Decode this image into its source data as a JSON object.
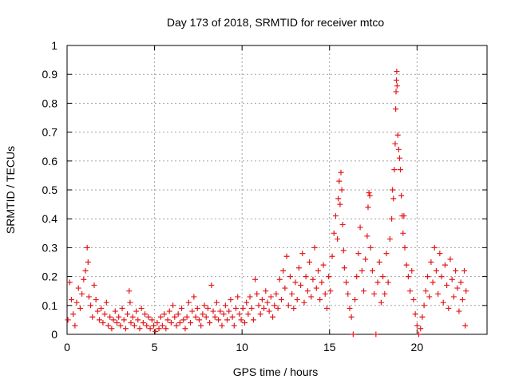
{
  "chart_data": {
    "type": "scatter",
    "title": "Day 173 of 2018, SRMTID for receiver mtco",
    "xlabel": "GPS time / hours",
    "ylabel": "SRMTID / TECUs",
    "xlim": [
      0,
      24
    ],
    "ylim": [
      0,
      1
    ],
    "x_ticks": [
      0,
      5,
      10,
      15,
      20
    ],
    "x_tick_labels": [
      "0",
      "5",
      "10",
      "15",
      "20"
    ],
    "y_ticks": [
      0,
      0.1,
      0.2,
      0.3,
      0.4,
      0.5,
      0.6,
      0.7,
      0.8,
      0.9,
      1
    ],
    "y_tick_labels": [
      "0",
      "0.1",
      "0.2",
      "0.3",
      "0.4",
      "0.5",
      "0.6",
      "0.7",
      "0.8",
      "0.9",
      "1"
    ],
    "grid": true,
    "marker": "plus",
    "series": [
      {
        "name": "SRMTID",
        "color": "#e31a1c",
        "points": [
          [
            0.05,
            0.05
          ],
          [
            0.15,
            0.18
          ],
          [
            0.25,
            0.12
          ],
          [
            0.35,
            0.07
          ],
          [
            0.45,
            0.03
          ],
          [
            0.55,
            0.11
          ],
          [
            0.65,
            0.16
          ],
          [
            0.75,
            0.09
          ],
          [
            0.85,
            0.14
          ],
          [
            0.95,
            0.19
          ],
          [
            1.05,
            0.22
          ],
          [
            1.15,
            0.3
          ],
          [
            1.2,
            0.25
          ],
          [
            1.25,
            0.13
          ],
          [
            1.35,
            0.1
          ],
          [
            1.45,
            0.06
          ],
          [
            1.55,
            0.17
          ],
          [
            1.65,
            0.12
          ],
          [
            1.75,
            0.08
          ],
          [
            1.85,
            0.05
          ],
          [
            1.95,
            0.09
          ],
          [
            2.05,
            0.04
          ],
          [
            2.15,
            0.07
          ],
          [
            2.25,
            0.11
          ],
          [
            2.35,
            0.03
          ],
          [
            2.45,
            0.06
          ],
          [
            2.55,
            0.02
          ],
          [
            2.65,
            0.05
          ],
          [
            2.75,
            0.08
          ],
          [
            2.85,
            0.04
          ],
          [
            2.95,
            0.06
          ],
          [
            3.05,
            0.03
          ],
          [
            3.15,
            0.09
          ],
          [
            3.25,
            0.05
          ],
          [
            3.35,
            0.02
          ],
          [
            3.45,
            0.07
          ],
          [
            3.55,
            0.15
          ],
          [
            3.6,
            0.11
          ],
          [
            3.65,
            0.04
          ],
          [
            3.75,
            0.06
          ],
          [
            3.85,
            0.03
          ],
          [
            3.95,
            0.08
          ],
          [
            4.05,
            0.05
          ],
          [
            4.15,
            0.02
          ],
          [
            4.25,
            0.09
          ],
          [
            4.35,
            0.04
          ],
          [
            4.45,
            0.07
          ],
          [
            4.55,
            0.03
          ],
          [
            4.65,
            0.06
          ],
          [
            4.75,
            0.02
          ],
          [
            4.85,
            0.05
          ],
          [
            4.95,
            0.03
          ],
          [
            5.05,
            0.01
          ],
          [
            5.15,
            0.04
          ],
          [
            5.25,
            0.02
          ],
          [
            5.35,
            0.06
          ],
          [
            5.45,
            0.03
          ],
          [
            5.55,
            0.07
          ],
          [
            5.65,
            0.02
          ],
          [
            5.75,
            0.05
          ],
          [
            5.85,
            0.08
          ],
          [
            5.95,
            0.04
          ],
          [
            6.05,
            0.1
          ],
          [
            6.15,
            0.06
          ],
          [
            6.25,
            0.03
          ],
          [
            6.35,
            0.07
          ],
          [
            6.45,
            0.04
          ],
          [
            6.55,
            0.09
          ],
          [
            6.65,
            0.05
          ],
          [
            6.75,
            0.02
          ],
          [
            6.85,
            0.06
          ],
          [
            6.95,
            0.11
          ],
          [
            7.05,
            0.04
          ],
          [
            7.15,
            0.08
          ],
          [
            7.25,
            0.13
          ],
          [
            7.35,
            0.06
          ],
          [
            7.45,
            0.09
          ],
          [
            7.55,
            0.05
          ],
          [
            7.65,
            0.03
          ],
          [
            7.75,
            0.07
          ],
          [
            7.85,
            0.1
          ],
          [
            7.95,
            0.06
          ],
          [
            8.05,
            0.09
          ],
          [
            8.15,
            0.04
          ],
          [
            8.25,
            0.17
          ],
          [
            8.35,
            0.08
          ],
          [
            8.45,
            0.06
          ],
          [
            8.55,
            0.11
          ],
          [
            8.65,
            0.05
          ],
          [
            8.75,
            0.08
          ],
          [
            8.85,
            0.03
          ],
          [
            8.95,
            0.07
          ],
          [
            9.05,
            0.1
          ],
          [
            9.15,
            0.05
          ],
          [
            9.25,
            0.08
          ],
          [
            9.35,
            0.12
          ],
          [
            9.45,
            0.06
          ],
          [
            9.55,
            0.03
          ],
          [
            9.65,
            0.09
          ],
          [
            9.75,
            0.13
          ],
          [
            9.85,
            0.07
          ],
          [
            9.95,
            0.05
          ],
          [
            10.05,
            0.09
          ],
          [
            10.15,
            0.04
          ],
          [
            10.25,
            0.11
          ],
          [
            10.35,
            0.07
          ],
          [
            10.45,
            0.13
          ],
          [
            10.55,
            0.09
          ],
          [
            10.65,
            0.05
          ],
          [
            10.75,
            0.19
          ],
          [
            10.85,
            0.14
          ],
          [
            10.95,
            0.1
          ],
          [
            11.05,
            0.07
          ],
          [
            11.15,
            0.12
          ],
          [
            11.25,
            0.09
          ],
          [
            11.35,
            0.15
          ],
          [
            11.45,
            0.11
          ],
          [
            11.55,
            0.08
          ],
          [
            11.65,
            0.13
          ],
          [
            11.75,
            0.06
          ],
          [
            11.85,
            0.1
          ],
          [
            11.95,
            0.14
          ],
          [
            12.05,
            0.09
          ],
          [
            12.15,
            0.19
          ],
          [
            12.25,
            0.12
          ],
          [
            12.35,
            0.22
          ],
          [
            12.45,
            0.16
          ],
          [
            12.55,
            0.27
          ],
          [
            12.65,
            0.1
          ],
          [
            12.75,
            0.2
          ],
          [
            12.85,
            0.14
          ],
          [
            12.95,
            0.09
          ],
          [
            13.05,
            0.18
          ],
          [
            13.15,
            0.12
          ],
          [
            13.25,
            0.23
          ],
          [
            13.35,
            0.17
          ],
          [
            13.45,
            0.28
          ],
          [
            13.55,
            0.11
          ],
          [
            13.65,
            0.2
          ],
          [
            13.75,
            0.15
          ],
          [
            13.85,
            0.25
          ],
          [
            13.95,
            0.13
          ],
          [
            14.05,
            0.19
          ],
          [
            14.15,
            0.3
          ],
          [
            14.25,
            0.16
          ],
          [
            14.35,
            0.22
          ],
          [
            14.45,
            0.12
          ],
          [
            14.55,
            0.18
          ],
          [
            14.65,
            0.24
          ],
          [
            14.75,
            0.14
          ],
          [
            14.85,
            0.09
          ],
          [
            14.95,
            0.2
          ],
          [
            15.05,
            0.15
          ],
          [
            15.15,
            0.27
          ],
          [
            15.25,
            0.35
          ],
          [
            15.35,
            0.41
          ],
          [
            15.45,
            0.33
          ],
          [
            15.5,
            0.47
          ],
          [
            15.55,
            0.53
          ],
          [
            15.6,
            0.45
          ],
          [
            15.65,
            0.56
          ],
          [
            15.7,
            0.5
          ],
          [
            15.75,
            0.38
          ],
          [
            15.8,
            0.29
          ],
          [
            15.85,
            0.23
          ],
          [
            15.95,
            0.18
          ],
          [
            16.05,
            0.14
          ],
          [
            16.15,
            0.09
          ],
          [
            16.25,
            0.06
          ],
          [
            16.35,
            0.0
          ],
          [
            16.45,
            0.12
          ],
          [
            16.55,
            0.2
          ],
          [
            16.65,
            0.28
          ],
          [
            16.75,
            0.37
          ],
          [
            16.85,
            0.22
          ],
          [
            16.95,
            0.15
          ],
          [
            17.05,
            0.26
          ],
          [
            17.15,
            0.34
          ],
          [
            17.2,
            0.44
          ],
          [
            17.25,
            0.49
          ],
          [
            17.3,
            0.48
          ],
          [
            17.35,
            0.3
          ],
          [
            17.45,
            0.22
          ],
          [
            17.55,
            0.14
          ],
          [
            17.65,
            0.0
          ],
          [
            17.75,
            0.18
          ],
          [
            17.85,
            0.25
          ],
          [
            17.95,
            0.11
          ],
          [
            18.05,
            0.2
          ],
          [
            18.15,
            0.14
          ],
          [
            18.25,
            0.28
          ],
          [
            18.35,
            0.18
          ],
          [
            18.45,
            0.33
          ],
          [
            18.55,
            0.4
          ],
          [
            18.6,
            0.5
          ],
          [
            18.65,
            0.47
          ],
          [
            18.7,
            0.57
          ],
          [
            18.75,
            0.66
          ],
          [
            18.78,
            0.78
          ],
          [
            18.8,
            0.84
          ],
          [
            18.82,
            0.88
          ],
          [
            18.84,
            0.91
          ],
          [
            18.86,
            0.86
          ],
          [
            18.9,
            0.69
          ],
          [
            18.95,
            0.64
          ],
          [
            19.0,
            0.61
          ],
          [
            19.05,
            0.57
          ],
          [
            19.1,
            0.48
          ],
          [
            19.15,
            0.41
          ],
          [
            19.2,
            0.35
          ],
          [
            19.25,
            0.41
          ],
          [
            19.3,
            0.3
          ],
          [
            19.4,
            0.24
          ],
          [
            19.5,
            0.2
          ],
          [
            19.6,
            0.15
          ],
          [
            19.7,
            0.22
          ],
          [
            19.8,
            0.12
          ],
          [
            19.9,
            0.07
          ],
          [
            20.0,
            0.03
          ],
          [
            20.1,
            0.0
          ],
          [
            20.2,
            0.02
          ],
          [
            20.3,
            0.06
          ],
          [
            20.4,
            0.1
          ],
          [
            20.5,
            0.15
          ],
          [
            20.6,
            0.2
          ],
          [
            20.7,
            0.13
          ],
          [
            20.8,
            0.25
          ],
          [
            20.9,
            0.18
          ],
          [
            21.0,
            0.3
          ],
          [
            21.1,
            0.22
          ],
          [
            21.2,
            0.14
          ],
          [
            21.3,
            0.28
          ],
          [
            21.4,
            0.2
          ],
          [
            21.5,
            0.11
          ],
          [
            21.6,
            0.24
          ],
          [
            21.7,
            0.17
          ],
          [
            21.8,
            0.09
          ],
          [
            21.9,
            0.26
          ],
          [
            22.0,
            0.19
          ],
          [
            22.1,
            0.13
          ],
          [
            22.2,
            0.22
          ],
          [
            22.3,
            0.16
          ],
          [
            22.4,
            0.08
          ],
          [
            22.5,
            0.18
          ],
          [
            22.6,
            0.12
          ],
          [
            22.7,
            0.22
          ],
          [
            22.75,
            0.03
          ],
          [
            22.8,
            0.15
          ]
        ]
      }
    ]
  }
}
